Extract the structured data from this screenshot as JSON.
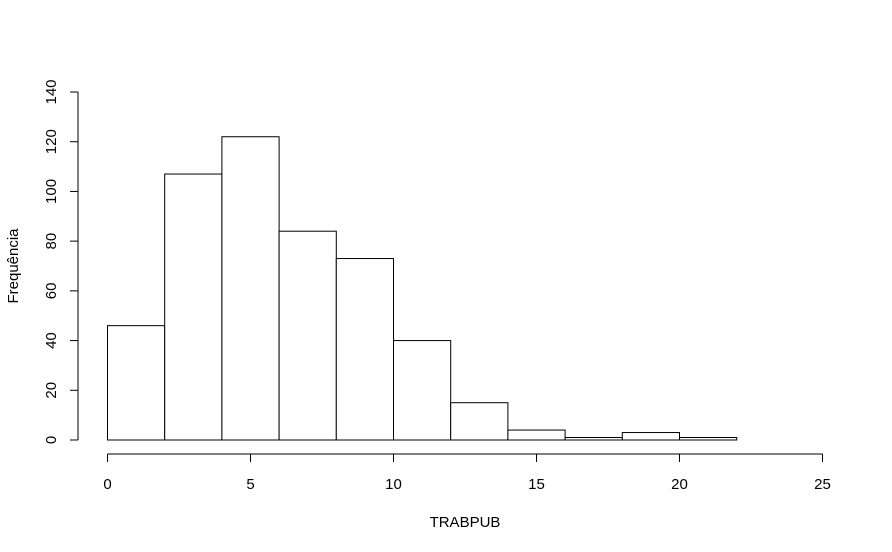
{
  "chart_data": {
    "type": "bar",
    "subtype": "histogram",
    "title": "",
    "xlabel": "TRABPUB",
    "ylabel": "Frequência",
    "xlim": [
      0,
      25
    ],
    "ylim": [
      0,
      140
    ],
    "xticks": [
      0,
      5,
      10,
      15,
      20,
      25
    ],
    "yticks": [
      0,
      20,
      40,
      60,
      80,
      100,
      120,
      140
    ],
    "bins": [
      {
        "x0": 0,
        "x1": 2,
        "count": 46
      },
      {
        "x0": 2,
        "x1": 4,
        "count": 107
      },
      {
        "x0": 4,
        "x1": 6,
        "count": 122
      },
      {
        "x0": 6,
        "x1": 8,
        "count": 84
      },
      {
        "x0": 8,
        "x1": 10,
        "count": 73
      },
      {
        "x0": 10,
        "x1": 12,
        "count": 40
      },
      {
        "x0": 12,
        "x1": 14,
        "count": 15
      },
      {
        "x0": 14,
        "x1": 16,
        "count": 4
      },
      {
        "x0": 16,
        "x1": 18,
        "count": 1
      },
      {
        "x0": 18,
        "x1": 20,
        "count": 3
      },
      {
        "x0": 20,
        "x1": 22,
        "count": 1
      }
    ],
    "bar_fill": "#ffffff",
    "bar_stroke": "#000000",
    "grid": false,
    "legend": "none"
  }
}
